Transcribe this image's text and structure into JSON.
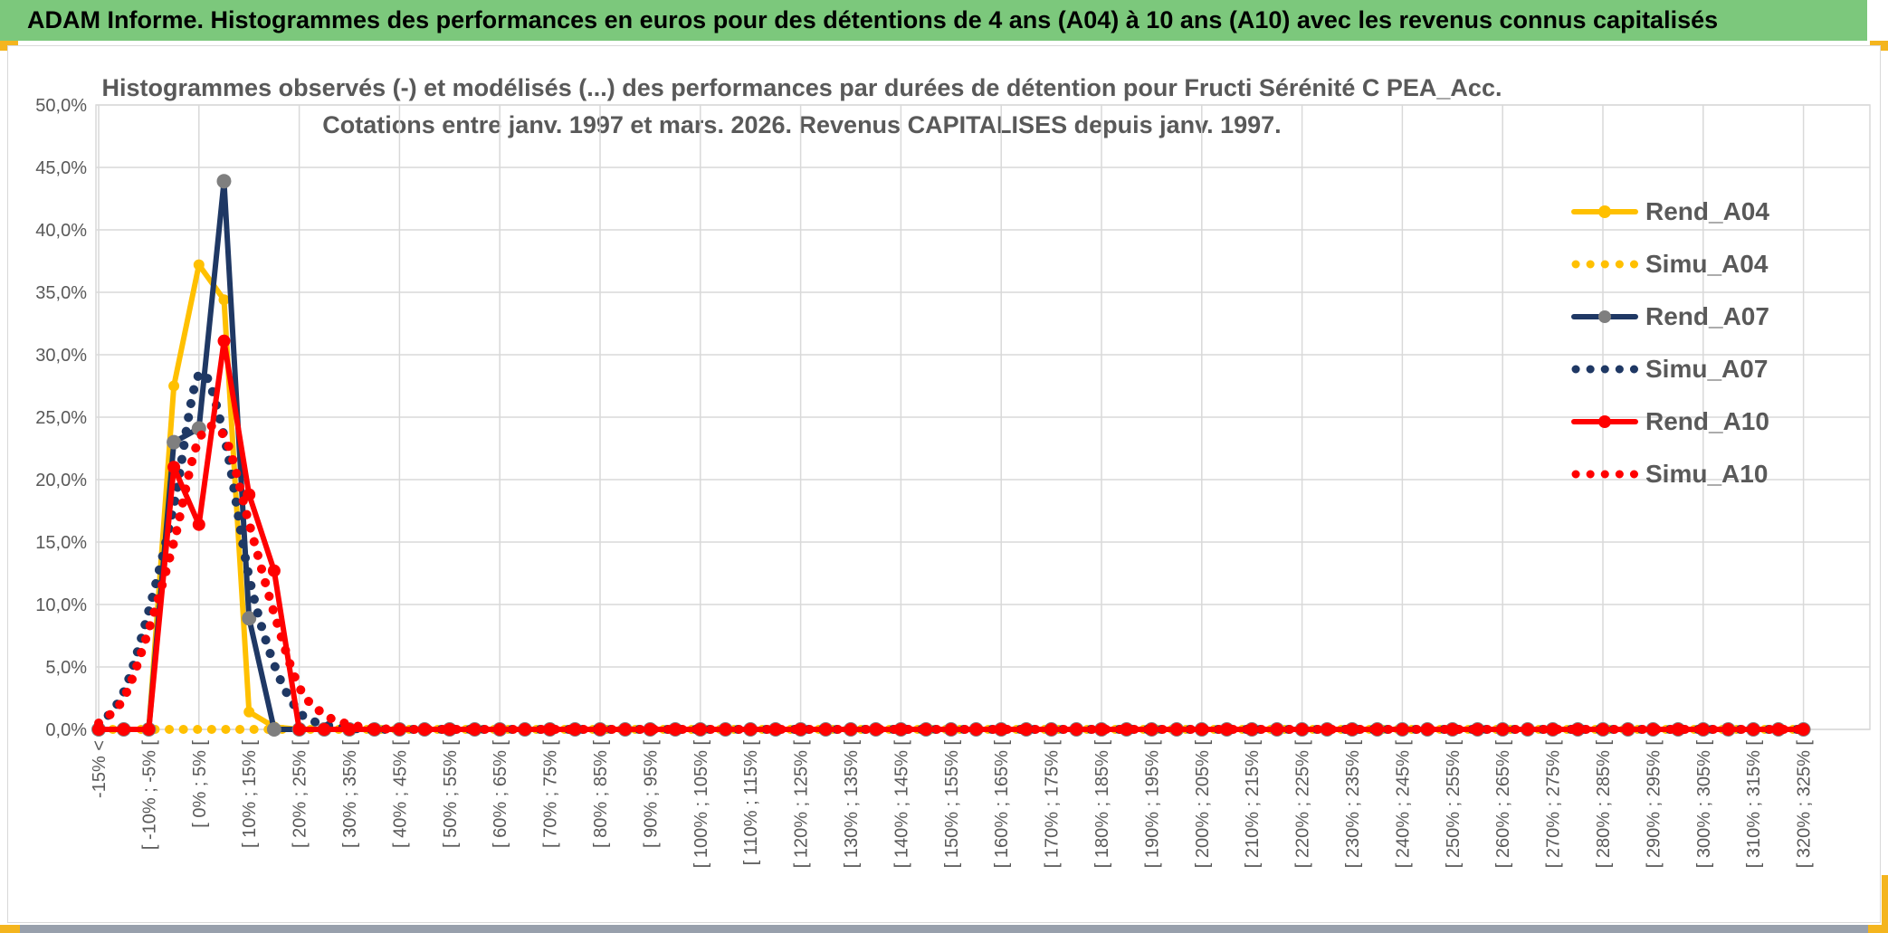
{
  "banner": {
    "title": "ADAM Informe. Histogrammes des performances en euros pour des détentions de 4 ans (A04) à 10 ans (A10) avec les revenus connus capitalisés"
  },
  "chart_data": {
    "type": "line",
    "title": "Histogrammes observés (-) et modélisés (...) des performances par durées de détention pour Fructi Sérénité C PEA_Acc.",
    "subtitle": "Cotations entre janv. 1997 et mars. 2026. Revenus CAPITALISES depuis janv. 1997.",
    "y_axis": {
      "min": 0,
      "max": 50,
      "step": 5,
      "tick_labels": [
        "0,0%",
        "5,0%",
        "10,0%",
        "15,0%",
        "20,0%",
        "25,0%",
        "30,0%",
        "35,0%",
        "40,0%",
        "45,0%",
        "50,0%"
      ]
    },
    "x_axis": {
      "n_bins": 69,
      "bin_width_pct": 5,
      "label_every_n_bins": 2,
      "visible_labels": [
        "-15% <",
        "[ -10% ; -5% [",
        "[ 0% ; 5% [",
        "[ 10% ; 15% [",
        "[ 20% ; 25% [",
        "[ 30% ; 35% [",
        "[ 40% ; 45% [",
        "[ 50% ; 55% [",
        "[ 60% ; 65% [",
        "[ 70% ; 75% [",
        "[ 80% ; 85% [",
        "[ 90% ; 95% [",
        "[ 100% ; 105% [",
        "[ 110% ; 115% [",
        "[ 120% ; 125% [",
        "[ 130% ; 135% [",
        "[ 140% ; 145% [",
        "[ 150% ; 155% [",
        "[ 160% ; 165% [",
        "[ 170% ; 175% [",
        "[ 180% ; 185% [",
        "[ 190% ; 195% [",
        "[ 200% ; 205% [",
        "[ 210% ; 215% [",
        "[ 220% ; 225% [",
        "[ 230% ; 235% [",
        "[ 240% ; 245% [",
        "[ 250% ; 255% [",
        "[ 260% ; 265% [",
        "[ 270% ; 275% [",
        "[ 280% ; 285% [",
        "[ 290% ; 295% [",
        "[ 300% ; 305% [",
        "[ 310% ; 315% [",
        "[ 320% ; 325% ["
      ]
    },
    "grid": {
      "horizontal": true,
      "vertical_every_n_bins": 4,
      "color": "#d9d9d9"
    },
    "legend_position": "right-inside",
    "series": [
      {
        "name": "Rend_A04",
        "line": "solid",
        "color": "#ffc000",
        "marker_color": "#ffc000",
        "marker_r": 6,
        "values_pct": [
          0,
          0,
          0,
          27.5,
          37.2,
          34.4,
          1.4,
          0.2,
          0,
          0,
          0,
          0
        ]
      },
      {
        "name": "Simu_A04",
        "line": "dotted",
        "color": "#ffc000",
        "marker_color": null,
        "marker_r": 0,
        "values_pct": [
          0,
          0,
          0,
          0,
          0,
          0,
          0,
          0,
          0,
          0,
          0,
          0
        ]
      },
      {
        "name": "Rend_A07",
        "line": "solid",
        "color": "#1f3864",
        "marker_color": "#7f7f7f",
        "marker_r": 8,
        "values_pct": [
          0,
          0,
          0,
          23.0,
          24.1,
          43.9,
          8.9,
          0,
          0,
          0,
          0,
          0
        ]
      },
      {
        "name": "Simu_A07",
        "line": "dotted",
        "color": "#1f3864",
        "marker_color": null,
        "marker_r": 0,
        "values_pct": [
          0.3,
          3.0,
          9.5,
          17.9,
          28.4,
          23.5,
          12.2,
          5.2,
          1.4,
          0.4,
          0.1,
          0
        ]
      },
      {
        "name": "Rend_A10",
        "line": "solid",
        "color": "#ff0000",
        "marker_color": "#ff0000",
        "marker_r": 7,
        "values_pct": [
          0,
          0,
          0,
          21.0,
          16.4,
          31.1,
          18.8,
          12.7,
          0,
          0,
          0,
          0
        ]
      },
      {
        "name": "Simu_A10",
        "line": "dotted",
        "color": "#ff0000",
        "marker_color": null,
        "marker_r": 0,
        "values_pct": [
          0.5,
          2.5,
          8.0,
          15.0,
          23.2,
          23.5,
          16.5,
          9.3,
          3.4,
          1.2,
          0.4,
          0.1
        ]
      }
    ],
    "axis_text_color": "#595959",
    "title_text_color": "#595959"
  }
}
